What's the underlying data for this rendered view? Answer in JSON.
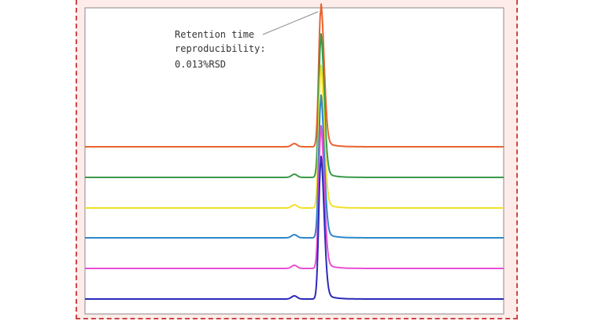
{
  "colors": {
    "frame_border": "#d04545",
    "frame_bg": "#fdecea",
    "plot_bg": "#ffffff",
    "plot_border": "#8a8a8a"
  },
  "chart_data": {
    "type": "line",
    "title": "",
    "xlabel": "",
    "ylabel": "",
    "grid": false,
    "legend": "none",
    "x_range": [
      0,
      100
    ],
    "peak_x": 56.3,
    "shoulder_x": 50.0,
    "annotation": {
      "lines": [
        "Retention time",
        "reproducibility:",
        "0.013%RSD"
      ]
    },
    "series": [
      {
        "color": "#e8632f",
        "baseline": 0,
        "peak_height": 1.0
      },
      {
        "color": "#3a9a48",
        "baseline": 0,
        "peak_height": 1.0
      },
      {
        "color": "#f2e02a",
        "baseline": 0,
        "peak_height": 1.0
      },
      {
        "color": "#2f86c8",
        "baseline": 0,
        "peak_height": 1.0
      },
      {
        "color": "#e84fd6",
        "baseline": 0,
        "peak_height": 1.0
      },
      {
        "color": "#2a2ab8",
        "baseline": 0,
        "peak_height": 1.0
      }
    ]
  }
}
